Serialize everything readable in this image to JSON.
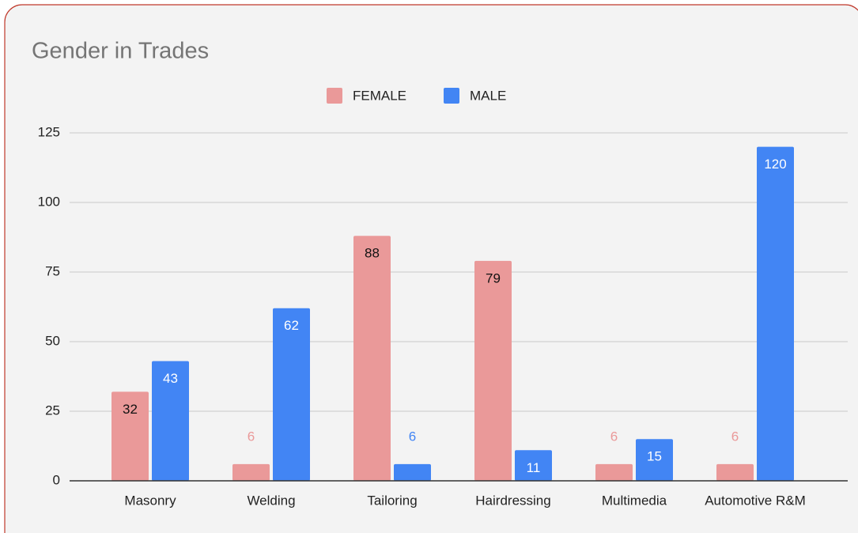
{
  "chart_data": {
    "type": "bar",
    "title": "Gender in Trades",
    "categories": [
      "Masonry",
      "Welding",
      "Tailoring",
      "Hairdressing",
      "Multimedia",
      "Automotive R&M"
    ],
    "series": [
      {
        "name": "FEMALE",
        "color": "#ea9999",
        "values": [
          32,
          6,
          88,
          79,
          6,
          6
        ]
      },
      {
        "name": "MALE",
        "color": "#4285f4",
        "values": [
          43,
          62,
          6,
          11,
          15,
          120
        ]
      }
    ],
    "ylim": [
      0,
      125
    ],
    "yticks": [
      0,
      25,
      50,
      75,
      100,
      125
    ],
    "grid": true,
    "legend": "top"
  }
}
